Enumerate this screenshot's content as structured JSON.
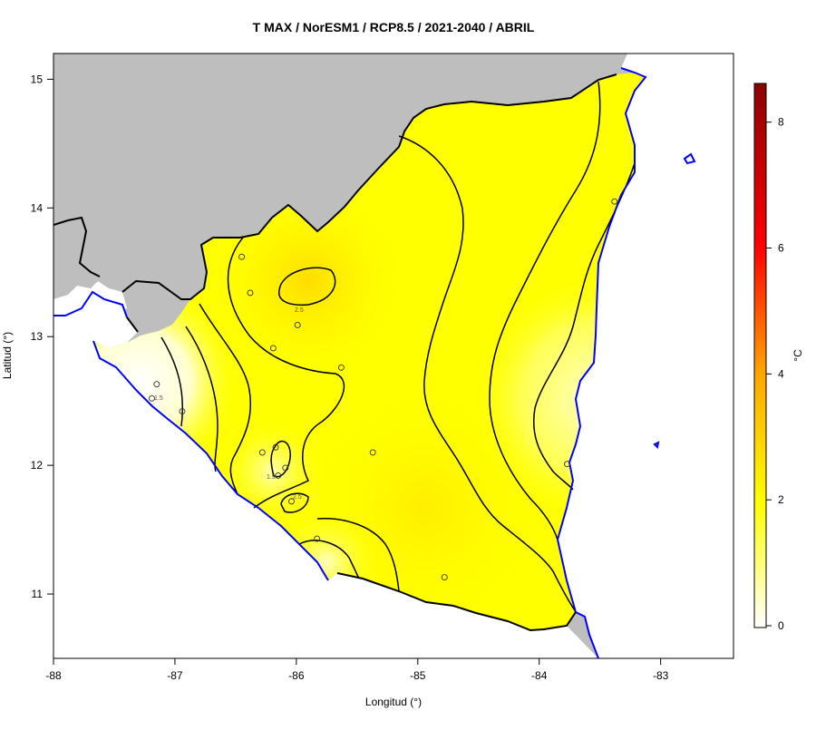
{
  "title": "T MAX / NorESM1 / RCP8.5 / 2021-2040 / ABRIL",
  "xlabel": "Longitud (°)",
  "ylabel": "Latitud (°)",
  "x_ticks": [
    "-88",
    "-87",
    "-86",
    "-85",
    "-84",
    "-83"
  ],
  "y_ticks": [
    "11",
    "12",
    "13",
    "14",
    "15"
  ],
  "colorbar": {
    "unit": "°C",
    "ticks": [
      "0",
      "2",
      "4",
      "6",
      "8"
    ],
    "colors": [
      "#ffffff",
      "#ffff00",
      "#ffa500",
      "#ff0000",
      "#8b0000"
    ]
  },
  "contour_labels": [
    "2.5",
    "1.5",
    "2.5",
    "1.5"
  ],
  "colors": {
    "land_outside": "#bebebe",
    "sea": "#ffffff",
    "border": "#000000",
    "coast": "#0000ff",
    "field": "#ffff00"
  },
  "chart_data": {
    "type": "heatmap",
    "title": "T MAX / NorESM1 / RCP8.5 / 2021-2040 / ABRIL",
    "xlabel": "Longitud (°)",
    "ylabel": "Latitud (°)",
    "xlim": [
      -88,
      -82.4
    ],
    "ylim": [
      10.5,
      15.2
    ],
    "colorbar_range": [
      0,
      8.5
    ],
    "grid": false,
    "stations": [
      {
        "lon": -86.45,
        "lat": 13.62
      },
      {
        "lon": -86.38,
        "lat": 13.34
      },
      {
        "lon": -85.99,
        "lat": 13.09
      },
      {
        "lon": -86.19,
        "lat": 12.91
      },
      {
        "lon": -85.63,
        "lat": 12.76
      },
      {
        "lon": -87.15,
        "lat": 12.63
      },
      {
        "lon": -87.19,
        "lat": 12.52
      },
      {
        "lon": -86.94,
        "lat": 12.42
      },
      {
        "lon": -86.17,
        "lat": 12.14
      },
      {
        "lon": -86.28,
        "lat": 12.1
      },
      {
        "lon": -85.37,
        "lat": 12.1
      },
      {
        "lon": -86.09,
        "lat": 11.98
      },
      {
        "lon": -86.15,
        "lat": 11.92
      },
      {
        "lon": -86.04,
        "lat": 11.72
      },
      {
        "lon": -85.83,
        "lat": 11.43
      },
      {
        "lon": -84.78,
        "lat": 11.13
      },
      {
        "lon": -83.38,
        "lat": 14.05
      },
      {
        "lon": -83.77,
        "lat": 12.01
      }
    ]
  }
}
